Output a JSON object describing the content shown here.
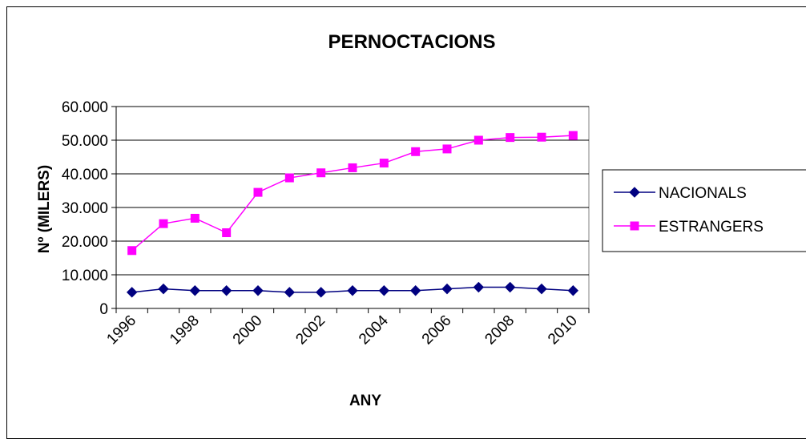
{
  "chart_data": {
    "type": "line",
    "title": "PERNOCTACIONS",
    "xlabel": "ANY",
    "ylabel": "Nº (MILERS)",
    "x": [
      1996,
      1997,
      1998,
      1999,
      2000,
      2001,
      2002,
      2003,
      2004,
      2005,
      2006,
      2007,
      2008,
      2009,
      2010
    ],
    "x_tick_labels": [
      "1996",
      "1998",
      "2000",
      "2002",
      "2004",
      "2006",
      "2008",
      "2010"
    ],
    "y_tick_labels": [
      "0",
      "10.000",
      "20.000",
      "30.000",
      "40.000",
      "50.000",
      "60.000"
    ],
    "ylim": [
      0,
      60000
    ],
    "grid": true,
    "legend_position": "right",
    "series": [
      {
        "name": "NACIONALS",
        "color": "#000080",
        "marker": "diamond",
        "values": [
          4800,
          5800,
          5300,
          5300,
          5300,
          4800,
          4800,
          5300,
          5300,
          5300,
          5800,
          6300,
          6300,
          5800,
          5300
        ]
      },
      {
        "name": "ESTRANGERS",
        "color": "#FF00FF",
        "marker": "square",
        "values": [
          17200,
          25200,
          26800,
          22500,
          34500,
          38800,
          40300,
          41800,
          43200,
          46600,
          47400,
          50000,
          50800,
          50900,
          51400
        ]
      }
    ]
  }
}
